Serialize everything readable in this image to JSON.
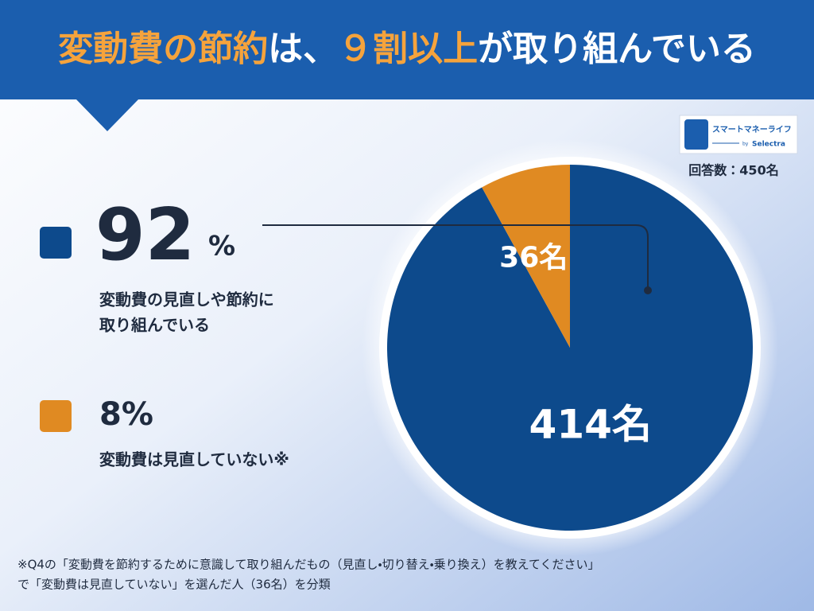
{
  "chart_data": {
    "type": "pie",
    "title_parts": [
      "変動費の節約",
      "は、",
      "９割以上",
      "が取り組んでいる"
    ],
    "title_colors": [
      "#f5a33c",
      "#ffffff",
      "#f5a33c",
      "#ffffff"
    ],
    "categories": [
      "変動費の見直しや節約に取り組んでいる",
      "変動費は見直していない"
    ],
    "values": [
      414,
      36
    ],
    "value_labels": [
      "414名",
      "36名"
    ],
    "colors": [
      "#0d4a8c",
      "#e08a22"
    ],
    "legend": [
      {
        "number": "92",
        "unit": "%",
        "lines": [
          "変動費の見直しや節約に",
          "取り組んでいる"
        ]
      },
      {
        "number": "8%",
        "lines": [
          "変動費は見直していない※"
        ]
      }
    ],
    "respondents": "回答数：450名",
    "logo": {
      "name": "スマートマネーライフ",
      "by": "by",
      "brand": "Selectra"
    },
    "footnote": [
      "※Q4の「変動費を節約するために意識して取り組んだもの（見直し・切り替え・乗り換え）を教えてください」",
      "で「変動費は見直していない」を選んだ人（36名）を分類"
    ]
  }
}
